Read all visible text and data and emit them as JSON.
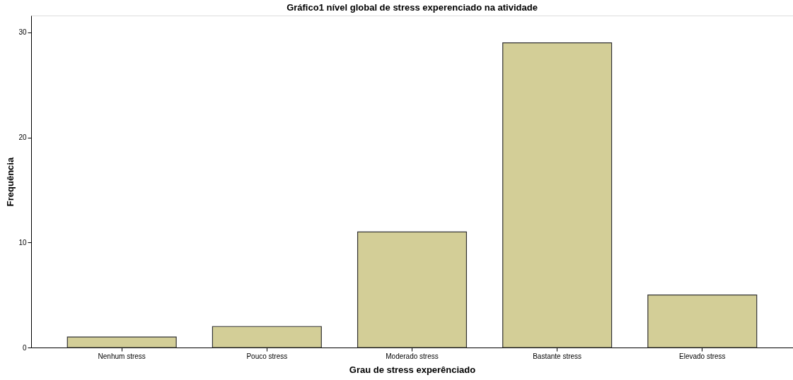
{
  "chart_data": {
    "type": "bar",
    "title": "Gráfico1 nível global de stress experenciado na atividade",
    "xlabel": "Grau de stress experênciado",
    "ylabel": "Frequência",
    "categories": [
      "Nenhum stress",
      "Pouco stress",
      "Moderado stress",
      "Bastante stress",
      "Elevado stress"
    ],
    "values": [
      1,
      2,
      11,
      29,
      5
    ],
    "color": "#d3ce97",
    "ylim": [
      0,
      31.6
    ],
    "yticks": [
      0,
      10,
      20,
      30
    ],
    "grid": false
  }
}
